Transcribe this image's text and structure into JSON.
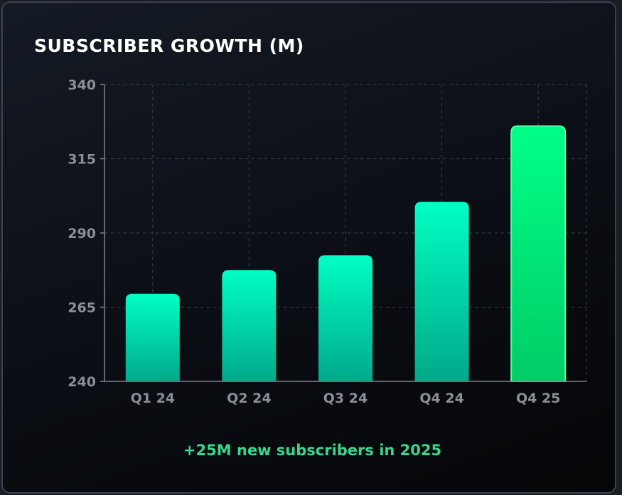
{
  "card": {
    "footer_note": "+25M new subscribers in 2025"
  },
  "colors": {
    "bar_top": "#00ffc4",
    "bar_bottom": "#00a98a",
    "highlight_top": "#00ff88",
    "highlight_bottom": "#00cc66",
    "highlight_glow": "#55ffaa",
    "gridline": "#3a414d",
    "axis": "#7d828c",
    "tick_text": "#8b8f97",
    "footer_text": "#37d68f"
  },
  "chart_data": {
    "type": "bar",
    "title": "SUBSCRIBER GROWTH (M)",
    "categories": [
      "Q1 24",
      "Q2 24",
      "Q3 24",
      "Q4 24",
      "Q4 25"
    ],
    "values": [
      269.5,
      277.5,
      282.5,
      300.5,
      326
    ],
    "highlighted_category": "Q4 25",
    "ylim": [
      240,
      340
    ],
    "yticks": [
      240,
      265,
      290,
      315,
      340
    ],
    "grid": true,
    "legend": "none"
  }
}
